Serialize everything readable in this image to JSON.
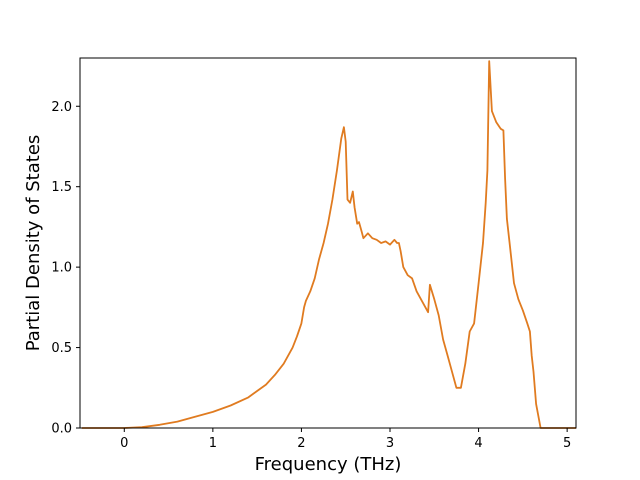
{
  "chart_data": {
    "type": "line",
    "title": "",
    "xlabel": "Frequency (THz)",
    "ylabel": "Partial Density of States",
    "xlim": [
      -0.5,
      5.1
    ],
    "ylim": [
      0.0,
      2.3
    ],
    "xticks": [
      0,
      1,
      2,
      3,
      4,
      5
    ],
    "yticks": [
      0.0,
      0.5,
      1.0,
      1.5,
      2.0
    ],
    "xtick_labels": [
      "0",
      "1",
      "2",
      "3",
      "4",
      "5"
    ],
    "ytick_labels": [
      "0.0",
      "0.5",
      "1.0",
      "1.5",
      "2.0"
    ],
    "grid": false,
    "legend": "none",
    "series": [
      {
        "color": "#e07b20",
        "x": [
          -0.48,
          0.0,
          0.2,
          0.4,
          0.6,
          0.8,
          1.0,
          1.2,
          1.4,
          1.5,
          1.6,
          1.7,
          1.8,
          1.9,
          1.95,
          2.0,
          2.03,
          2.05,
          2.1,
          2.15,
          2.2,
          2.25,
          2.3,
          2.35,
          2.4,
          2.45,
          2.48,
          2.5,
          2.52,
          2.55,
          2.58,
          2.6,
          2.63,
          2.65,
          2.68,
          2.7,
          2.75,
          2.8,
          2.85,
          2.9,
          2.95,
          3.0,
          3.05,
          3.08,
          3.1,
          3.12,
          3.15,
          3.2,
          3.25,
          3.3,
          3.35,
          3.4,
          3.43,
          3.45,
          3.5,
          3.55,
          3.6,
          3.65,
          3.7,
          3.75,
          3.8,
          3.85,
          3.9,
          3.95,
          4.0,
          4.05,
          4.08,
          4.1,
          4.12,
          4.15,
          4.2,
          4.25,
          4.28,
          4.3,
          4.32,
          4.35,
          4.4,
          4.45,
          4.5,
          4.55,
          4.58,
          4.6,
          4.62,
          4.65,
          4.7,
          4.8,
          4.9,
          5.1
        ],
        "y": [
          0.0,
          0.0,
          0.005,
          0.02,
          0.04,
          0.07,
          0.1,
          0.14,
          0.19,
          0.23,
          0.27,
          0.33,
          0.4,
          0.5,
          0.57,
          0.65,
          0.75,
          0.79,
          0.85,
          0.93,
          1.05,
          1.15,
          1.27,
          1.42,
          1.6,
          1.8,
          1.87,
          1.78,
          1.42,
          1.4,
          1.47,
          1.37,
          1.27,
          1.28,
          1.22,
          1.18,
          1.21,
          1.18,
          1.17,
          1.15,
          1.16,
          1.14,
          1.17,
          1.15,
          1.15,
          1.1,
          1.0,
          0.95,
          0.93,
          0.85,
          0.8,
          0.75,
          0.72,
          0.89,
          0.8,
          0.7,
          0.55,
          0.45,
          0.35,
          0.25,
          0.25,
          0.4,
          0.6,
          0.65,
          0.9,
          1.15,
          1.4,
          1.6,
          2.28,
          1.97,
          1.9,
          1.86,
          1.85,
          1.55,
          1.3,
          1.15,
          0.9,
          0.8,
          0.73,
          0.65,
          0.6,
          0.45,
          0.35,
          0.15,
          0.0,
          0.0,
          0.0,
          0.0
        ]
      }
    ]
  }
}
